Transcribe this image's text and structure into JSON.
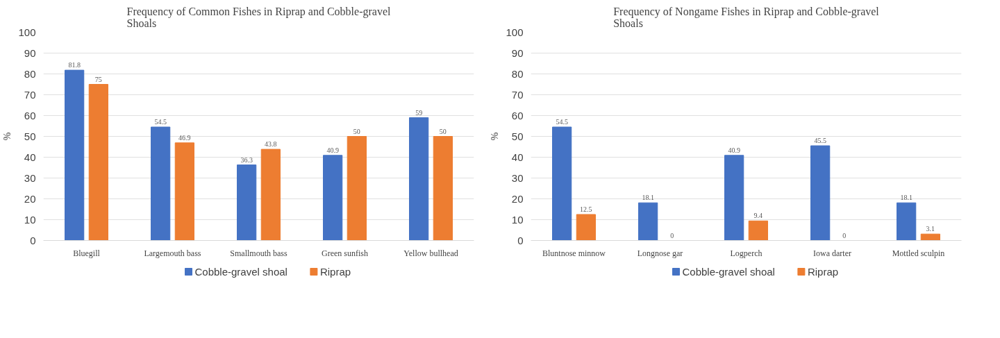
{
  "chart_data": [
    {
      "type": "bar",
      "title": "Frequency of Common Fishes in Riprap and Cobble-gravel Shoals",
      "ylabel": "%",
      "categories": [
        "Bluegill",
        "Largemouth bass",
        "Smallmouth bass",
        "Green sunfish",
        "Yellow bullhead"
      ],
      "series": [
        {
          "name": "Cobble-gravel shoal",
          "color": "#4472c4",
          "values": [
            81.8,
            54.5,
            36.3,
            40.9,
            59
          ]
        },
        {
          "name": "Riprap",
          "color": "#ed7d31",
          "values": [
            75,
            46.9,
            43.8,
            50,
            50
          ]
        }
      ],
      "ylim": [
        0,
        100
      ],
      "yticks": [
        0,
        10,
        20,
        30,
        40,
        50,
        60,
        70,
        80,
        90,
        100
      ],
      "grid": "y",
      "legend": "bottom",
      "data_labels": true
    },
    {
      "type": "bar",
      "title": "Frequency of Nongame Fishes in Riprap and Cobble-gravel Shoals",
      "ylabel": "%",
      "categories": [
        "Bluntnose minnow",
        "Longnose gar",
        "Logperch",
        "Iowa darter",
        "Mottled sculpin"
      ],
      "series": [
        {
          "name": "Cobble-gravel shoal",
          "color": "#4472c4",
          "values": [
            54.5,
            18.1,
            40.9,
            45.5,
            18.1
          ]
        },
        {
          "name": "Riprap",
          "color": "#ed7d31",
          "values": [
            12.5,
            0,
            9.4,
            0,
            3.1
          ]
        }
      ],
      "ylim": [
        0,
        100
      ],
      "yticks": [
        0,
        10,
        20,
        30,
        40,
        50,
        60,
        70,
        80,
        90,
        100
      ],
      "grid": "y",
      "legend": "bottom",
      "data_labels": true
    }
  ]
}
